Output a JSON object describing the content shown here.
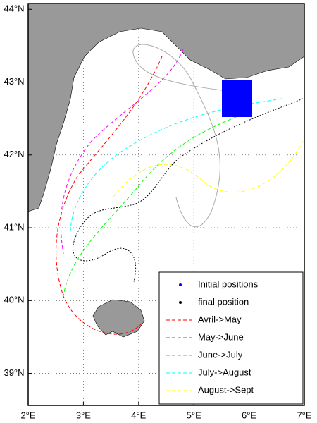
{
  "chart_data": {
    "type": "map",
    "xlim": [
      2,
      7
    ],
    "ylim": [
      38.56,
      44.08
    ],
    "xticks": [
      {
        "value": 2,
        "label": "2°E"
      },
      {
        "value": 3,
        "label": "3°E"
      },
      {
        "value": 4,
        "label": "4°E"
      },
      {
        "value": 5,
        "label": "5°E"
      },
      {
        "value": 6,
        "label": "6°E"
      },
      {
        "value": 7,
        "label": "7°E"
      }
    ],
    "yticks": [
      {
        "value": 39,
        "label": "39°N"
      },
      {
        "value": 40,
        "label": "40°N"
      },
      {
        "value": 41,
        "label": "41°N"
      },
      {
        "value": 42,
        "label": "42°N"
      },
      {
        "value": 43,
        "label": "43°N"
      },
      {
        "value": 44,
        "label": "44°N"
      }
    ],
    "grid": true,
    "legend": "lower right",
    "markers": [
      {
        "name": "Initial positions",
        "color": "#0000ff"
      },
      {
        "name": "final position",
        "color": "#000000"
      }
    ],
    "series": [
      {
        "name": "Avril->May",
        "color": "#ff0000"
      },
      {
        "name": "May->June",
        "color": "#ff00ff"
      },
      {
        "name": "June->July",
        "color": "#00ff00"
      },
      {
        "name": "July->August",
        "color": "#00ffff"
      },
      {
        "name": "August->Sept",
        "color": "#ffff00"
      }
    ]
  }
}
